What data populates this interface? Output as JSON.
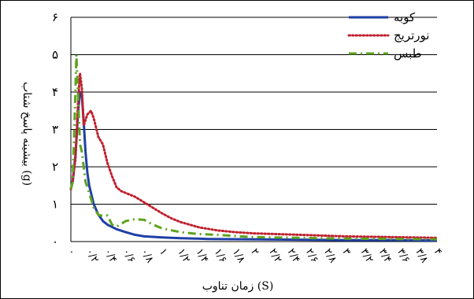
{
  "chart_data": {
    "type": "line",
    "xlabel": "زمان تناوب (S)",
    "ylabel": "بیشینه پاسخ شتاب (g)",
    "ylim": [
      0,
      6
    ],
    "xlim": [
      0,
      4
    ],
    "grid": true,
    "legend_position": "top-right",
    "x_tick_labels": [
      "۰",
      "۰/۲",
      "۰/۴",
      "۰/۶",
      "۰/۸",
      "۱",
      "۱/۲",
      "۱/۴",
      "۱/۶",
      "۱/۸",
      "۲",
      "۲/۲",
      "۲/۴",
      "۲/۶",
      "۲/۸",
      "۳",
      "۳/۲",
      "۳/۴",
      "۳/۶",
      "۳/۸",
      "۴"
    ],
    "y_tick_labels": [
      "۰",
      "۱",
      "۲",
      "۳",
      "۴",
      "۵",
      "۶"
    ],
    "series": [
      {
        "name": "کوبه",
        "color": "#1f3fa6",
        "style": "solid",
        "x": [
          0,
          0.02,
          0.05,
          0.08,
          0.1,
          0.12,
          0.14,
          0.16,
          0.18,
          0.2,
          0.25,
          0.3,
          0.35,
          0.4,
          0.5,
          0.6,
          0.7,
          0.8,
          1.0,
          1.2,
          1.5,
          2.0,
          2.5,
          3.0,
          3.5,
          4.0
        ],
        "y": [
          1.4,
          1.6,
          2.3,
          3.5,
          4.0,
          3.9,
          3.2,
          2.4,
          1.85,
          1.5,
          1.0,
          0.72,
          0.55,
          0.45,
          0.33,
          0.25,
          0.18,
          0.14,
          0.11,
          0.09,
          0.07,
          0.06,
          0.05,
          0.04,
          0.04,
          0.03
        ]
      },
      {
        "name": "نورتریج",
        "color": "#c0202e",
        "style": "dotted",
        "x": [
          0,
          0.02,
          0.05,
          0.08,
          0.1,
          0.12,
          0.14,
          0.18,
          0.22,
          0.25,
          0.3,
          0.35,
          0.4,
          0.45,
          0.5,
          0.55,
          0.6,
          0.7,
          0.8,
          0.9,
          1.0,
          1.1,
          1.2,
          1.4,
          1.6,
          1.8,
          2.0,
          2.5,
          3.0,
          3.5,
          4.0
        ],
        "y": [
          1.4,
          1.6,
          2.2,
          3.8,
          4.5,
          4.1,
          3.1,
          3.4,
          3.5,
          3.3,
          2.8,
          2.6,
          2.1,
          1.75,
          1.45,
          1.35,
          1.3,
          1.2,
          1.05,
          0.9,
          0.75,
          0.62,
          0.52,
          0.38,
          0.3,
          0.25,
          0.22,
          0.18,
          0.14,
          0.12,
          0.1
        ]
      },
      {
        "name": "طبس",
        "color": "#5ea31f",
        "style": "dashdot",
        "x": [
          0,
          0.02,
          0.04,
          0.06,
          0.08,
          0.1,
          0.12,
          0.14,
          0.16,
          0.2,
          0.25,
          0.3,
          0.35,
          0.4,
          0.45,
          0.5,
          0.6,
          0.7,
          0.8,
          0.9,
          1.0,
          1.2,
          1.4,
          1.6,
          1.8,
          2.0,
          2.5,
          3.0,
          3.5,
          4.0
        ],
        "y": [
          1.4,
          1.6,
          3.2,
          5.0,
          3.8,
          2.6,
          2.4,
          2.0,
          1.6,
          1.3,
          0.9,
          0.72,
          0.68,
          0.7,
          0.45,
          0.4,
          0.55,
          0.6,
          0.58,
          0.45,
          0.35,
          0.25,
          0.2,
          0.18,
          0.15,
          0.12,
          0.1,
          0.08,
          0.07,
          0.06
        ]
      }
    ]
  }
}
